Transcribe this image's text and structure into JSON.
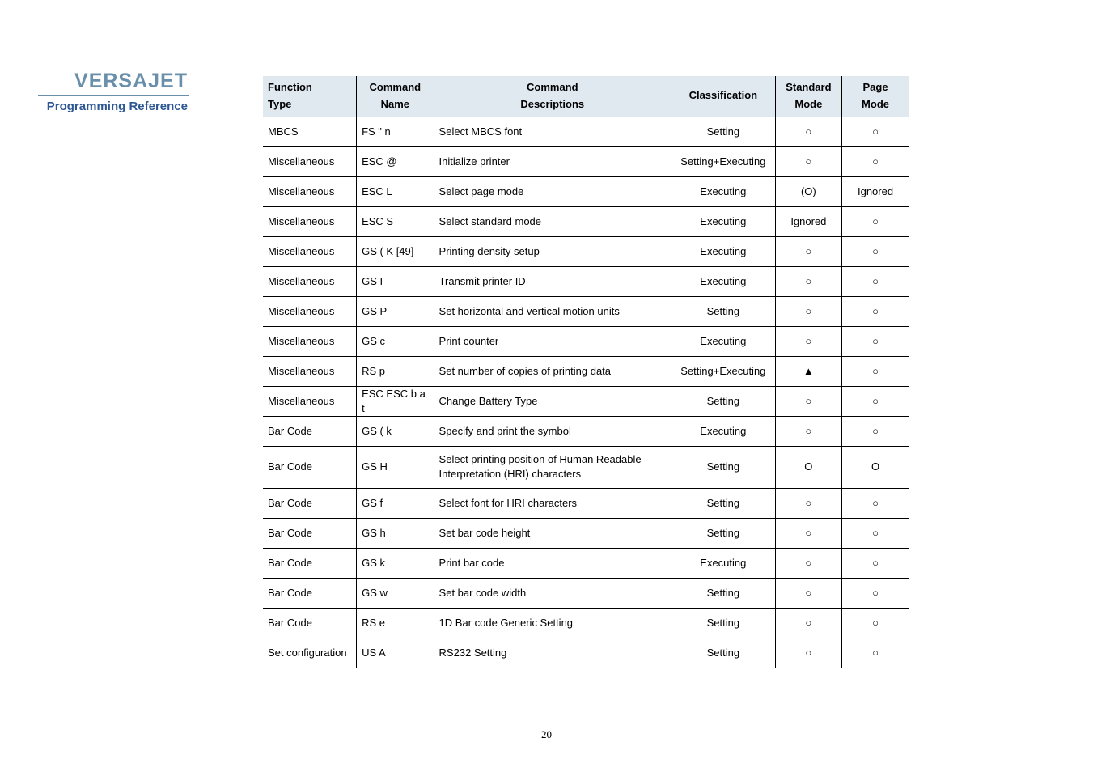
{
  "sidebar": {
    "brand": "VERSAJET",
    "subtitle": "Programming Reference"
  },
  "table": {
    "headers": {
      "func_type_l1": "Function",
      "func_type_l2": "Type",
      "cmd_name_l1": "Command",
      "cmd_name_l2": "Name",
      "cmd_desc_l1": "Command",
      "cmd_desc_l2": "Descriptions",
      "classification": "Classification",
      "std_mode_l1": "Standard",
      "std_mode_l2": "Mode",
      "page_mode_l1": "Page",
      "page_mode_l2": "Mode"
    },
    "rows": [
      {
        "type": "MBCS",
        "name": "FS \" n",
        "desc": "Select MBCS font",
        "class": "Setting",
        "std": "○",
        "page": "○"
      },
      {
        "type": "Miscellaneous",
        "name": "ESC @",
        "desc": "Initialize printer",
        "class": "Setting+Executing",
        "std": "○",
        "page": "○"
      },
      {
        "type": "Miscellaneous",
        "name": "ESC L",
        "desc": "Select page mode",
        "class": "Executing",
        "std": "(O)",
        "page": "Ignored"
      },
      {
        "type": "Miscellaneous",
        "name": "ESC S",
        "desc": "Select standard mode",
        "class": "Executing",
        "std": "Ignored",
        "page": "○"
      },
      {
        "type": "Miscellaneous",
        "name": "GS ( K [49]",
        "desc": "Printing density setup",
        "class": "Executing",
        "std": "○",
        "page": "○"
      },
      {
        "type": "Miscellaneous",
        "name": "GS I",
        "desc": "Transmit printer ID",
        "class": "Executing",
        "std": "○",
        "page": "○"
      },
      {
        "type": "Miscellaneous",
        "name": "GS P",
        "desc": "Set horizontal and vertical motion units",
        "class": "Setting",
        "std": "○",
        "page": "○"
      },
      {
        "type": "Miscellaneous",
        "name": "GS c",
        "desc": "Print counter",
        "class": "Executing",
        "std": "○",
        "page": "○"
      },
      {
        "type": "Miscellaneous",
        "name": "RS p",
        "desc": "Set number of copies of printing data",
        "class": "Setting+Executing",
        "std": "▲",
        "page": "○"
      },
      {
        "type": "Miscellaneous",
        "name": "ESC ESC b a t",
        "desc": "Change Battery Type",
        "class": "Setting",
        "std": "○",
        "page": "○"
      },
      {
        "type": "Bar Code",
        "name": "GS ( k",
        "desc": "Specify and print the symbol",
        "class": "Executing",
        "std": "○",
        "page": "○"
      },
      {
        "type": "Bar Code",
        "name": "GS H",
        "desc": "Select printing position of Human Readable Interpretation (HRI) characters",
        "class": "Setting",
        "std": "O",
        "page": "O",
        "tall": true
      },
      {
        "type": "Bar Code",
        "name": "GS f",
        "desc": "Select font for HRI characters",
        "class": "Setting",
        "std": "○",
        "page": "○"
      },
      {
        "type": "Bar Code",
        "name": "GS h",
        "desc": "Set bar code height",
        "class": "Setting",
        "std": "○",
        "page": "○"
      },
      {
        "type": "Bar Code",
        "name": "GS k",
        "desc": "Print bar code",
        "class": "Executing",
        "std": "○",
        "page": "○"
      },
      {
        "type": "Bar Code",
        "name": "GS w",
        "desc": "Set bar code width",
        "class": "Setting",
        "std": "○",
        "page": "○"
      },
      {
        "type": "Bar Code",
        "name": "RS e",
        "desc": "1D Bar code Generic Setting",
        "class": "Setting",
        "std": "○",
        "page": "○"
      },
      {
        "type": "Set configuration",
        "name": "US A",
        "desc": "RS232 Setting",
        "class": "Setting",
        "std": "○",
        "page": "○"
      }
    ]
  },
  "page_number": "20",
  "colors": {
    "header_bg": "#e0e8f0",
    "brand_color": "#6a8fab",
    "subtitle_color": "#2d5792",
    "border_color": "#000000"
  }
}
